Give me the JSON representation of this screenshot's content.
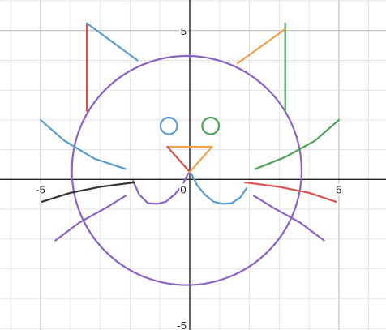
{
  "chart_data": {
    "type": "line",
    "title": "",
    "xlabel": "",
    "ylabel": "",
    "xlim": [
      -6.36,
      6.58
    ],
    "ylim": [
      -5.06,
      6.03
    ],
    "grid": true,
    "minor_grid_step": 1,
    "major_grid_step": 5,
    "x_ticks": [
      {
        "value": -5,
        "label": "-5"
      },
      {
        "value": 0,
        "label": "0"
      },
      {
        "value": 5,
        "label": "5"
      }
    ],
    "y_ticks": [
      {
        "value": 5,
        "label": "5"
      },
      {
        "value": -5,
        "label": "-5"
      }
    ],
    "series": [
      {
        "key": "face",
        "color": "#8a63c4",
        "kind": "circle",
        "center": [
          -0.1,
          0.3
        ],
        "radius": 3.85
      },
      {
        "key": "ear-left-vertical",
        "color": "#d9534f",
        "points": [
          [
            -3.45,
            5.2
          ],
          [
            -3.45,
            2.3
          ]
        ]
      },
      {
        "key": "ear-left-slant",
        "color": "#5b9bd0",
        "points": [
          [
            -3.45,
            5.25
          ],
          [
            -1.75,
            4.0
          ]
        ]
      },
      {
        "key": "ear-right-vertical",
        "color": "#4fa05a",
        "points": [
          [
            3.2,
            5.25
          ],
          [
            3.2,
            2.3
          ]
        ]
      },
      {
        "key": "ear-right-slant",
        "color": "#f0a050",
        "points": [
          [
            1.6,
            3.9
          ],
          [
            3.2,
            5.05
          ]
        ]
      },
      {
        "key": "eye-left",
        "color": "#5b9bd0",
        "kind": "circle",
        "center": [
          -0.7,
          1.8
        ],
        "radius": 0.28
      },
      {
        "key": "eye-right",
        "color": "#4fa05a",
        "kind": "circle",
        "center": [
          0.7,
          1.8
        ],
        "radius": 0.28
      },
      {
        "key": "nose-top",
        "color": "#f0a050",
        "points": [
          [
            -0.75,
            1.1
          ],
          [
            0.75,
            1.1
          ]
        ]
      },
      {
        "key": "nose-left",
        "color": "#d9534f",
        "points": [
          [
            -0.75,
            1.1
          ],
          [
            0.0,
            0.25
          ]
        ]
      },
      {
        "key": "nose-right",
        "color": "#f0a050",
        "points": [
          [
            0.75,
            1.1
          ],
          [
            0.0,
            0.25
          ]
        ]
      },
      {
        "key": "mouth-left",
        "color": "#8a63c4",
        "points": [
          [
            -1.9,
            -0.05
          ],
          [
            -1.7,
            -0.5
          ],
          [
            -1.4,
            -0.8
          ],
          [
            -1.1,
            -0.82
          ],
          [
            -0.8,
            -0.75
          ],
          [
            -0.5,
            -0.5
          ],
          [
            -0.25,
            -0.2
          ],
          [
            -0.05,
            0.2
          ]
        ]
      },
      {
        "key": "mouth-right",
        "color": "#5b9bd0",
        "points": [
          [
            0.05,
            0.2
          ],
          [
            0.25,
            -0.2
          ],
          [
            0.5,
            -0.5
          ],
          [
            0.8,
            -0.75
          ],
          [
            1.1,
            -0.82
          ],
          [
            1.4,
            -0.8
          ],
          [
            1.7,
            -0.6
          ],
          [
            1.9,
            -0.3
          ]
        ]
      },
      {
        "key": "whisker-left-upper",
        "color": "#5b9bd0",
        "points": [
          [
            -5.0,
            2.0
          ],
          [
            -4.2,
            1.3
          ],
          [
            -3.2,
            0.7
          ],
          [
            -2.15,
            0.35
          ]
        ]
      },
      {
        "key": "whisker-left-middle",
        "color": "#333333",
        "points": [
          [
            -4.95,
            -0.75
          ],
          [
            -4.0,
            -0.45
          ],
          [
            -3.0,
            -0.25
          ],
          [
            -1.85,
            -0.1
          ]
        ]
      },
      {
        "key": "whisker-left-lower",
        "color": "#8a63c4",
        "points": [
          [
            -4.5,
            -2.05
          ],
          [
            -3.7,
            -1.45
          ],
          [
            -2.8,
            -0.95
          ],
          [
            -2.15,
            -0.55
          ]
        ]
      },
      {
        "key": "whisker-right-upper",
        "color": "#4fa05a",
        "points": [
          [
            2.2,
            0.35
          ],
          [
            3.2,
            0.75
          ],
          [
            4.2,
            1.3
          ],
          [
            5.0,
            2.0
          ]
        ]
      },
      {
        "key": "whisker-right-middle",
        "color": "#d9534f",
        "points": [
          [
            1.85,
            -0.1
          ],
          [
            3.0,
            -0.25
          ],
          [
            4.0,
            -0.45
          ],
          [
            4.9,
            -0.75
          ]
        ]
      },
      {
        "key": "whisker-right-lower",
        "color": "#8a63c4",
        "points": [
          [
            2.15,
            -0.55
          ],
          [
            2.8,
            -0.95
          ],
          [
            3.7,
            -1.45
          ],
          [
            4.5,
            -2.05
          ]
        ]
      }
    ]
  }
}
